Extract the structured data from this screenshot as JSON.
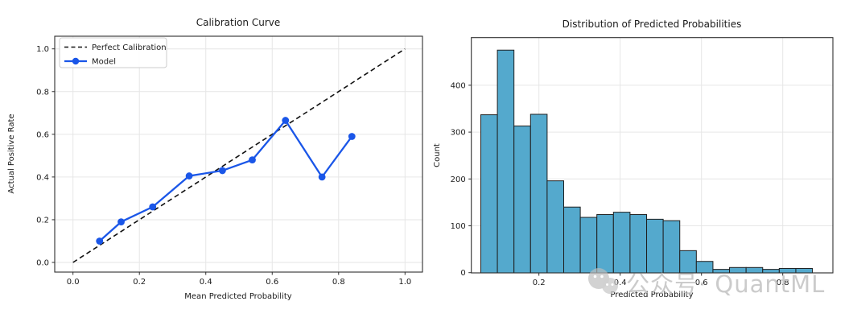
{
  "watermark": {
    "icon": "wechat-icon",
    "text": "公众号· QuantML",
    "color": "#bfbfbf"
  },
  "colors": {
    "model_blue": "#1a56e8",
    "perfect_black": "#111111",
    "hist_fill": "#54a9cd",
    "hist_edge": "#1f1f1f",
    "grid": "#e6e6e6",
    "spine": "#2e2e2e",
    "text": "#1a1a1a",
    "legend_border": "#cccccc"
  },
  "chart_data": [
    {
      "type": "line",
      "title": "Calibration Curve",
      "xlabel": "Mean Predicted Probability",
      "ylabel": "Actual Positive Rate",
      "xlim": [
        -0.055,
        1.055
      ],
      "ylim": [
        -0.046,
        1.059
      ],
      "xticks": [
        0.0,
        0.2,
        0.4,
        0.6,
        0.8,
        1.0
      ],
      "xtick_labels": [
        "0.0",
        "0.2",
        "0.4",
        "0.6",
        "0.8",
        "1.0"
      ],
      "yticks": [
        0.0,
        0.2,
        0.4,
        0.6,
        0.8,
        1.0
      ],
      "ytick_labels": [
        "0.0",
        "0.2",
        "0.4",
        "0.6",
        "0.8",
        "1.0"
      ],
      "grid": true,
      "legend_position": "upper-left",
      "legend": [
        {
          "label": "Perfect Calibration",
          "style": "dashed-black"
        },
        {
          "label": "Model",
          "style": "blue-line-marker"
        }
      ],
      "series": [
        {
          "name": "Perfect Calibration",
          "x": [
            0.0,
            1.0
          ],
          "y": [
            0.0,
            1.0
          ]
        },
        {
          "name": "Model",
          "x": [
            0.08,
            0.145,
            0.24,
            0.35,
            0.45,
            0.54,
            0.64,
            0.75,
            0.84
          ],
          "y": [
            0.1,
            0.19,
            0.26,
            0.405,
            0.43,
            0.48,
            0.665,
            0.4,
            0.59
          ]
        }
      ]
    },
    {
      "type": "bar",
      "title": "Distribution of Predicted Probabilities",
      "xlabel": "Predicted Probability",
      "ylabel": "Count",
      "xlim": [
        0.032,
        0.923
      ],
      "ylim": [
        0,
        502
      ],
      "xticks": [
        0.2,
        0.4,
        0.6,
        0.8
      ],
      "xtick_labels": [
        "0.2",
        "0.4",
        "0.6",
        "0.8"
      ],
      "yticks": [
        0,
        100,
        200,
        300,
        400
      ],
      "ytick_labels": [
        "0",
        "100",
        "200",
        "300",
        "400"
      ],
      "grid": true,
      "bin_start": 0.057,
      "bin_width": 0.0408,
      "values": [
        337,
        475,
        313,
        338,
        196,
        140,
        118,
        124,
        129,
        124,
        114,
        111,
        47,
        24,
        7,
        11,
        11,
        7,
        9,
        9
      ]
    }
  ]
}
